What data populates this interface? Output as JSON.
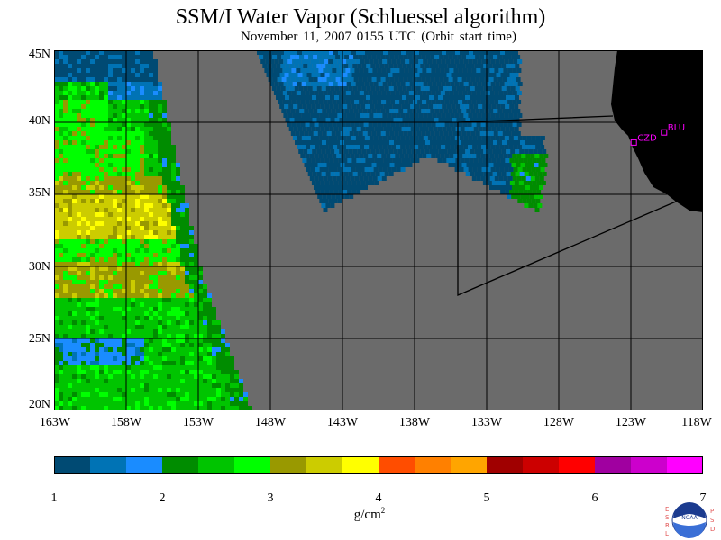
{
  "title": "SSM/I Water Vapor (Schluessel algorithm)",
  "subtitle": "November 11, 2007  0155 UTC  (Orbit start time)",
  "map": {
    "lat_labels": [
      "45N",
      "40N",
      "35N",
      "30N",
      "25N",
      "20N"
    ],
    "lon_labels": [
      "163W",
      "158W",
      "153W",
      "148W",
      "143W",
      "138W",
      "133W",
      "128W",
      "123W",
      "118W"
    ],
    "stations": [
      {
        "name": "CZD",
        "lat": 38.6,
        "lon": -122.8
      },
      {
        "name": "BLU",
        "lat": 39.3,
        "lon": -120.7
      }
    ],
    "colors": {
      "no_data": "#6b6b6b",
      "land": "#000000",
      "station": "#ff00ff",
      "grid": "#000000"
    }
  },
  "colorbar": {
    "units": "g/cm",
    "units_superscript": "2",
    "tick_labels": [
      "1",
      "2",
      "3",
      "4",
      "5",
      "6",
      "7"
    ],
    "colors": [
      "#004a73",
      "#0073b5",
      "#1a8cff",
      "#008c00",
      "#00c400",
      "#00ff00",
      "#999900",
      "#cccc00",
      "#ffff00",
      "#ff4d00",
      "#ff8000",
      "#ffa500",
      "#a00000",
      "#cc0000",
      "#ff0000",
      "#a000a0",
      "#cc00cc",
      "#ff00ff"
    ]
  },
  "logo": {
    "left_letters": "ESRL",
    "right_letters": "PSD",
    "center_text": "NOAA"
  }
}
